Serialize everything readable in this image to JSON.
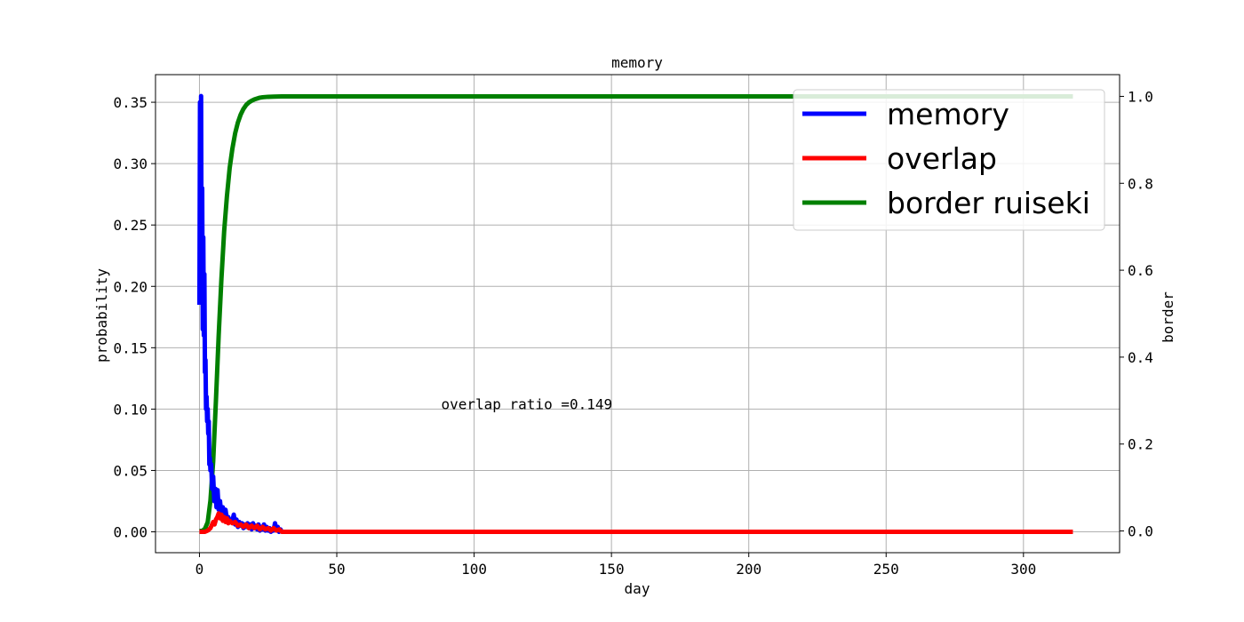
{
  "chart_data": {
    "type": "line",
    "title": "memory",
    "xlabel": "day",
    "ylabel": "probability",
    "ylabel_right": "border",
    "xlim": [
      -16,
      335
    ],
    "ylim": [
      -0.017,
      0.3725
    ],
    "ylim_right": [
      -0.05,
      1.05
    ],
    "xticks": [
      0,
      50,
      100,
      150,
      200,
      250,
      300
    ],
    "yticks": [
      0.0,
      0.05,
      0.1,
      0.15,
      0.2,
      0.25,
      0.3,
      0.35
    ],
    "yticks_right": [
      0.0,
      0.2,
      0.4,
      0.6,
      0.8,
      1.0
    ],
    "xtick_labels": [
      "0",
      "50",
      "100",
      "150",
      "200",
      "250",
      "300"
    ],
    "ytick_labels": [
      "0.00",
      "0.05",
      "0.10",
      "0.15",
      "0.20",
      "0.25",
      "0.30",
      "0.35"
    ],
    "ytick_labels_right": [
      "0.0",
      "0.2",
      "0.4",
      "0.6",
      "0.8",
      "1.0"
    ],
    "grid": true,
    "legend_position": "top-right",
    "annotation": {
      "text": "overlap ratio =0.149",
      "x": 88,
      "y": 0.1
    },
    "series": [
      {
        "name": "memory",
        "color": "#0000ff",
        "axis": "left",
        "x": [
          0,
          0.2,
          0.4,
          0.6,
          0.8,
          1.0,
          1.2,
          1.4,
          1.6,
          1.8,
          2.0,
          2.2,
          2.4,
          2.6,
          2.8,
          3.0,
          3.2,
          3.4,
          3.6,
          3.8,
          4.0,
          4.3,
          4.6,
          5.0,
          5.4,
          5.8,
          6.2,
          6.6,
          7.0,
          7.5,
          8.0,
          8.5,
          9.0,
          9.5,
          10,
          10.5,
          11,
          11.5,
          12,
          12.5,
          13,
          13.5,
          14,
          14.5,
          15,
          15.5,
          16,
          16.5,
          17,
          17.5,
          18,
          18.5,
          19,
          19.5,
          20,
          20.5,
          21,
          21.5,
          22,
          22.5,
          23,
          23.5,
          24,
          24.5,
          25,
          25.5,
          26,
          26.5,
          27,
          27.5,
          28,
          28.5,
          29,
          29.5,
          30
        ],
        "values": [
          0.185,
          0.35,
          0.2,
          0.355,
          0.19,
          0.28,
          0.165,
          0.24,
          0.16,
          0.21,
          0.13,
          0.14,
          0.1,
          0.11,
          0.09,
          0.1,
          0.08,
          0.09,
          0.055,
          0.06,
          0.05,
          0.055,
          0.035,
          0.045,
          0.025,
          0.035,
          0.02,
          0.034,
          0.018,
          0.025,
          0.012,
          0.02,
          0.015,
          0.018,
          0.01,
          0.012,
          0.008,
          0.01,
          0.009,
          0.014,
          0.006,
          0.01,
          0.004,
          0.008,
          0.005,
          0.007,
          0.003,
          0.006,
          0.004,
          0.007,
          0.003,
          0.006,
          0.002,
          0.007,
          0.003,
          0.005,
          0.002,
          0.006,
          0.001,
          0.004,
          0.002,
          0.006,
          0.001,
          0.004,
          0.001,
          0.003,
          0.0,
          0.002,
          0.001,
          0.007,
          0.002,
          0.004,
          0.0,
          0.002,
          0.0
        ]
      },
      {
        "name": "overlap",
        "color": "#ff0000",
        "axis": "left",
        "x": [
          0,
          1,
          2,
          3,
          4,
          5,
          5.5,
          6,
          6.5,
          7,
          7.5,
          8,
          8.5,
          9,
          9.5,
          10,
          10.5,
          11,
          12,
          13,
          14,
          15,
          16,
          17,
          18,
          19,
          20,
          21,
          22,
          23,
          24,
          25,
          26,
          27,
          28,
          29,
          30,
          31,
          35,
          50,
          100,
          150,
          200,
          250,
          300,
          318
        ],
        "values": [
          0.0,
          0.0,
          0.0,
          0.001,
          0.003,
          0.008,
          0.006,
          0.01,
          0.012,
          0.015,
          0.011,
          0.014,
          0.009,
          0.012,
          0.008,
          0.011,
          0.007,
          0.009,
          0.007,
          0.008,
          0.005,
          0.006,
          0.004,
          0.006,
          0.003,
          0.005,
          0.003,
          0.005,
          0.002,
          0.004,
          0.002,
          0.003,
          0.001,
          0.003,
          0.001,
          0.002,
          0.0,
          0.0,
          0.0,
          0.0,
          0.0,
          0.0,
          0.0,
          0.0,
          0.0,
          0.0
        ]
      },
      {
        "name": "border ruiseki",
        "color": "#008000",
        "axis": "right",
        "x": [
          0,
          1,
          2,
          3,
          4,
          5,
          6,
          7,
          8,
          9,
          10,
          11,
          12,
          13,
          14,
          15,
          16,
          17,
          18,
          19,
          20,
          21,
          22,
          23,
          24,
          25,
          27,
          30,
          35,
          40,
          50,
          100,
          150,
          200,
          250,
          300,
          318
        ],
        "values": [
          0.0,
          0.0,
          0.005,
          0.02,
          0.07,
          0.16,
          0.3,
          0.45,
          0.58,
          0.69,
          0.77,
          0.835,
          0.88,
          0.915,
          0.94,
          0.958,
          0.971,
          0.98,
          0.986,
          0.99,
          0.993,
          0.995,
          0.997,
          0.998,
          0.9985,
          0.999,
          0.9995,
          1.0,
          1.0,
          1.0,
          1.0,
          1.0,
          1.0,
          1.0,
          1.0,
          1.0,
          1.0
        ]
      }
    ]
  }
}
